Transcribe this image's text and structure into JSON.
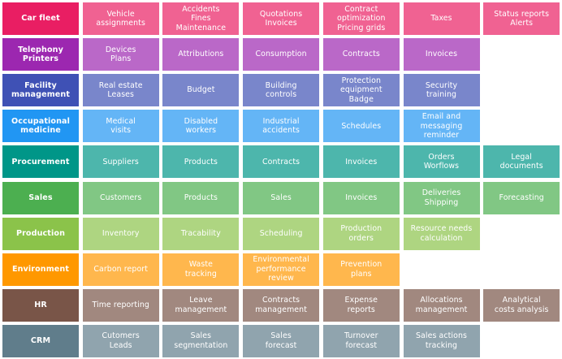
{
  "rows": [
    {
      "label": "Car fleet",
      "head_color": "#e91e63",
      "color": "#f06292",
      "items": [
        "Vehicle\nassignments",
        "Accidents\nFines\nMaintenance",
        "Quotations\nInvoices",
        "Contract\noptimization\nPricing grids",
        "Taxes",
        "Status reports\nAlerts"
      ]
    },
    {
      "label": "Telephony\nPrinters",
      "head_color": "#9c27b0",
      "color": "#ba68c8",
      "items": [
        "Devices\nPlans",
        "Attributions",
        "Consumption",
        "Contracts",
        "Invoices"
      ]
    },
    {
      "label": "Facility\nmanagement",
      "head_color": "#3f51b5",
      "color": "#7986cb",
      "items": [
        "Real estate\nLeases",
        "Budget",
        "Building\ncontrols",
        "Protection\nequipment\nBadge",
        "Security\ntraining"
      ]
    },
    {
      "label": "Occupational\nmedicine",
      "head_color": "#2196f3",
      "color": "#64b5f6",
      "items": [
        "Medical\nvisits",
        "Disabled\nworkers",
        "Industrial\naccidents",
        "Schedules",
        "Email and\nmessaging\nreminder"
      ]
    },
    {
      "label": "Procurement",
      "head_color": "#009688",
      "color": "#4db6ac",
      "items": [
        "Suppliers",
        "Products",
        "Contracts",
        "Invoices",
        "Orders\nWorflows",
        "Legal\ndocuments"
      ]
    },
    {
      "label": "Sales",
      "head_color": "#4caf50",
      "color": "#81c784",
      "items": [
        "Customers",
        "Products",
        "Sales",
        "Invoices",
        "Deliveries\nShipping",
        "Forecasting"
      ]
    },
    {
      "label": "Production",
      "head_color": "#8bc34a",
      "color": "#aed581",
      "items": [
        "Inventory",
        "Tracability",
        "Scheduling",
        "Production\norders",
        "Resource needs\ncalculation"
      ]
    },
    {
      "label": "Environment",
      "head_color": "#ff9800",
      "color": "#ffb74d",
      "items": [
        "Carbon report",
        "Waste\ntracking",
        "Environmental\nperformance\nreview",
        "Prevention\nplans"
      ]
    },
    {
      "label": "HR",
      "head_color": "#795548",
      "color": "#a1887f",
      "items": [
        "Time reporting",
        "Leave\nmanagement",
        "Contracts\nmanagement",
        "Expense\nreports",
        "Allocations\nmanagement",
        "Analytical\ncosts analysis"
      ]
    },
    {
      "label": "CRM",
      "head_color": "#607d8b",
      "color": "#90a4ae",
      "items": [
        "Cutomers\nLeads",
        "Sales\nsegmentation",
        "Sales\nforecast",
        "Turnover\nforecast",
        "Sales actions\ntracking"
      ]
    }
  ]
}
